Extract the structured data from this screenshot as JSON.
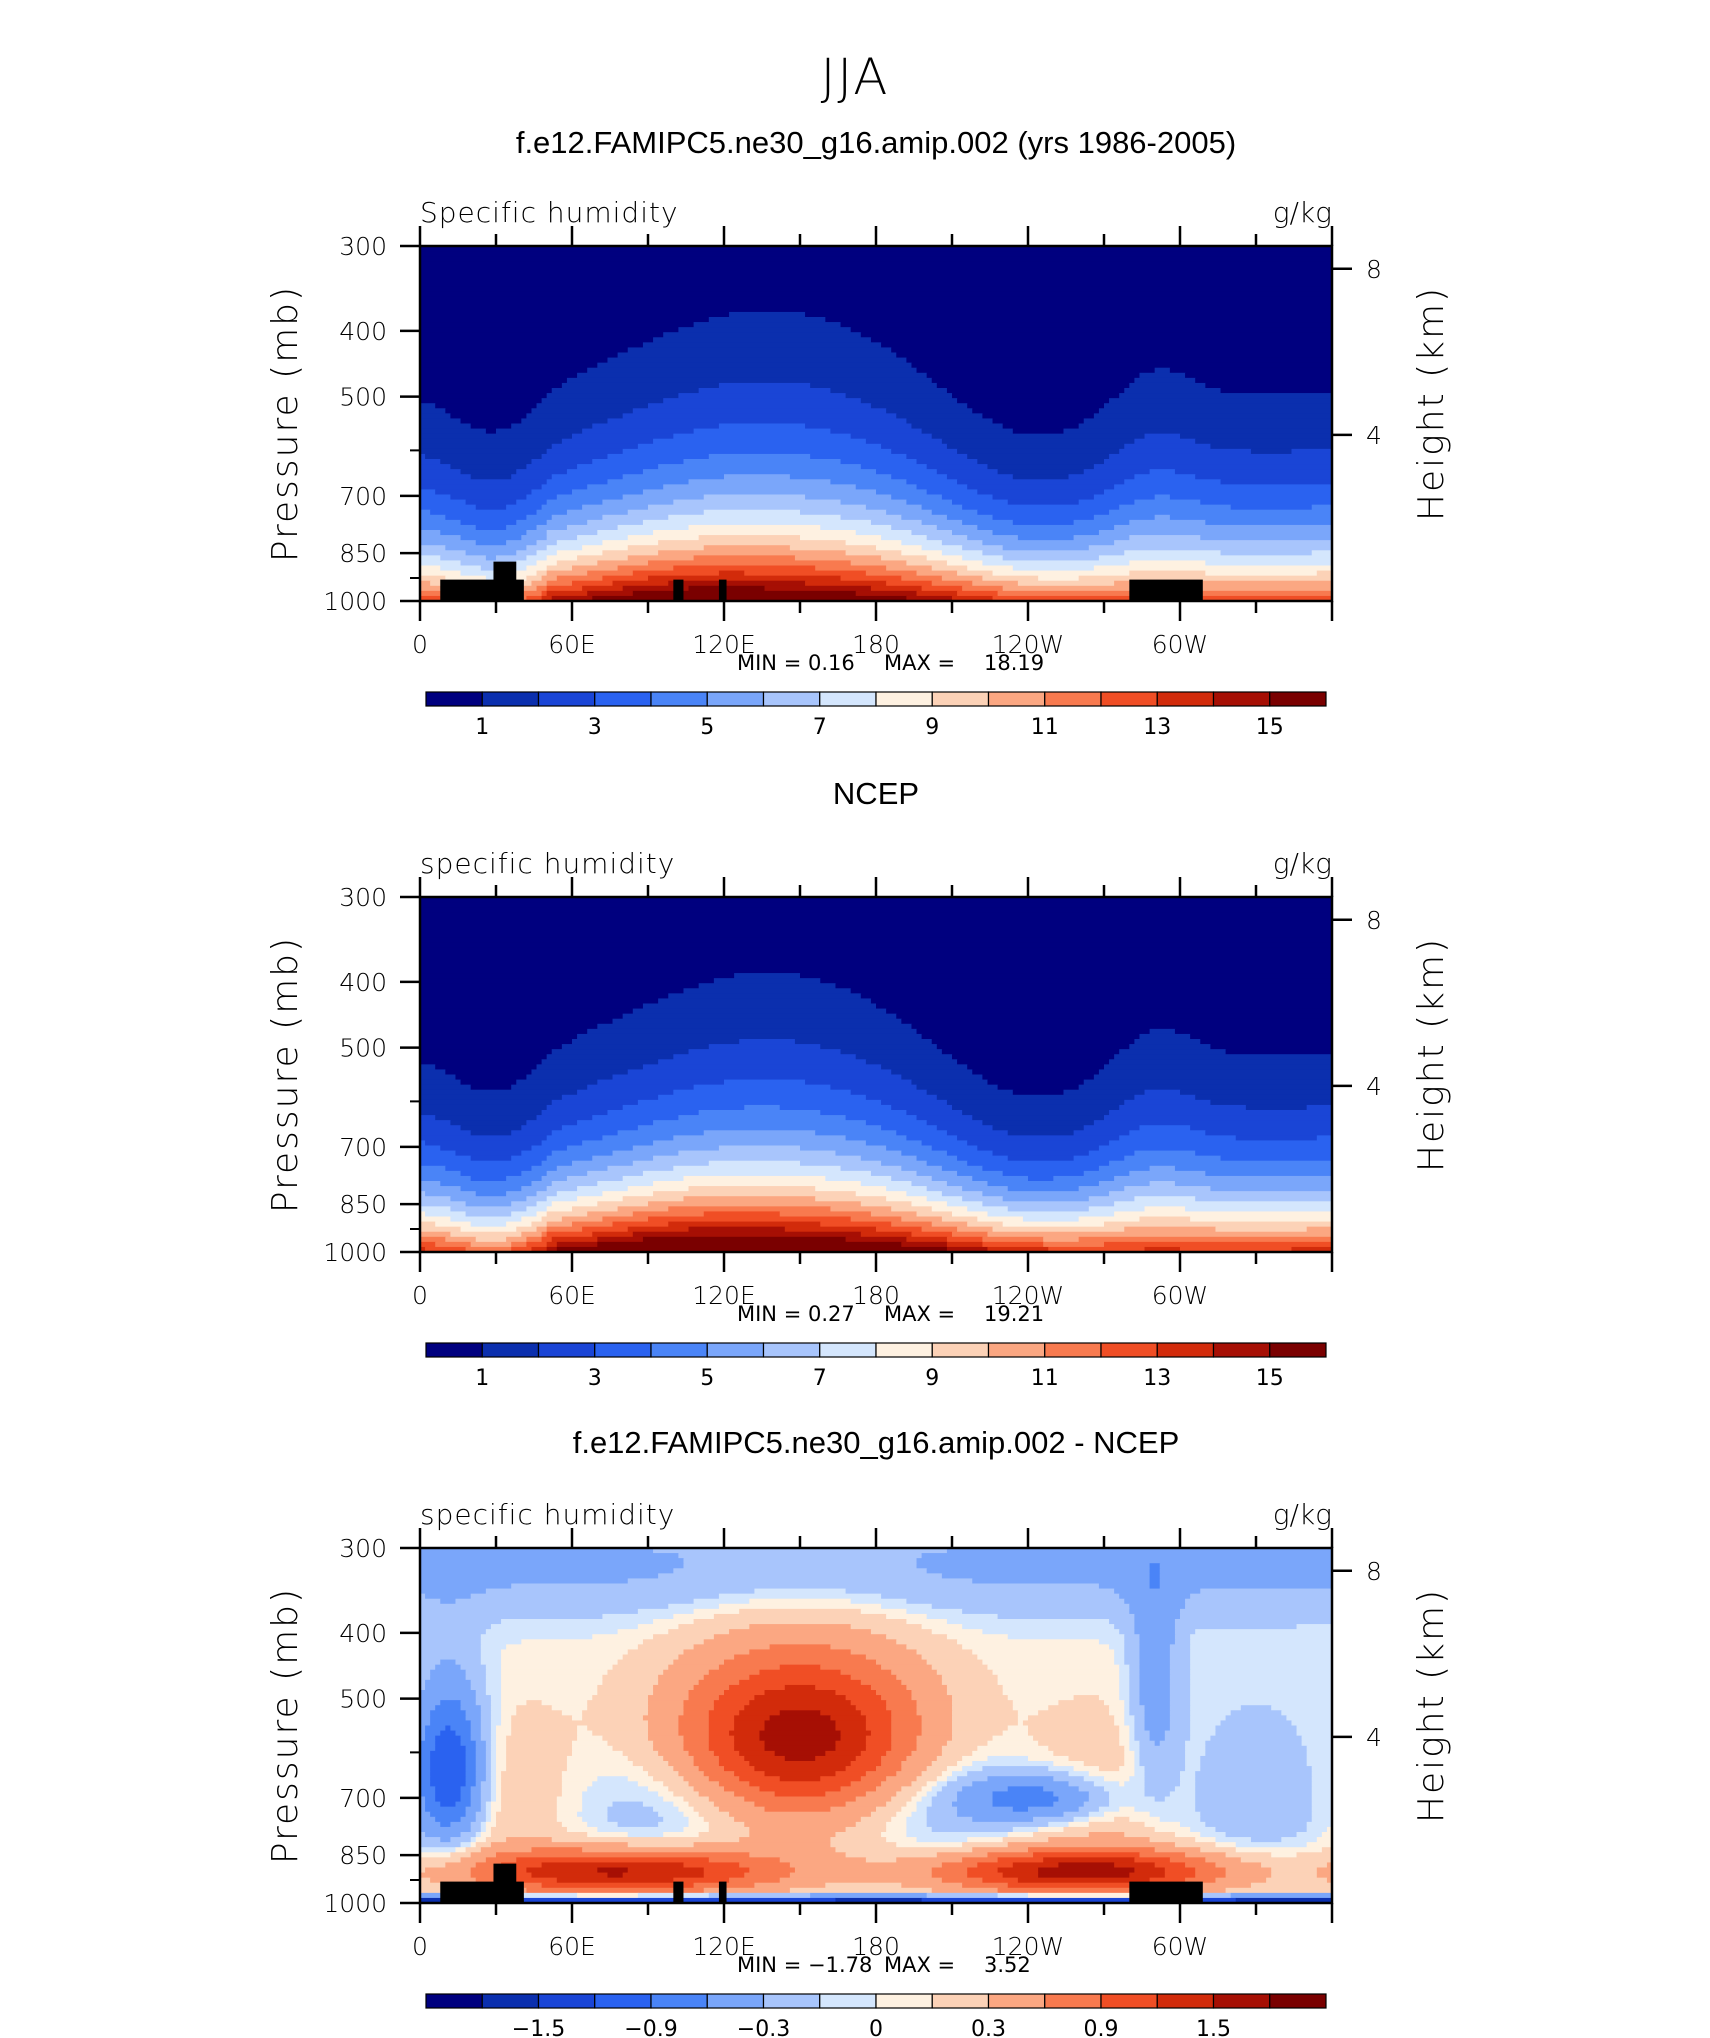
{
  "figure": {
    "title": "JJA"
  },
  "colorbar_colors_abs": [
    "#00007f",
    "#0b2fae",
    "#1a45d6",
    "#2a62f0",
    "#4a84f7",
    "#7aa6fa",
    "#a8c5fc",
    "#d4e6fd",
    "#fef1e1",
    "#fcd2b7",
    "#fba782",
    "#f87a4f",
    "#f04e25",
    "#d22b0b",
    "#a60f04",
    "#7a0000"
  ],
  "colorbar_colors_diff": [
    "#00007f",
    "#0b2fae",
    "#1a45d6",
    "#2a62f0",
    "#4a84f7",
    "#7aa6fa",
    "#a8c5fc",
    "#d4e6fd",
    "#fef1e1",
    "#fcd2b7",
    "#fba782",
    "#f87a4f",
    "#f04e25",
    "#d22b0b",
    "#a60f04",
    "#7a0000"
  ],
  "chart_data": [
    {
      "type": "heatmap",
      "title": "f.e12.FAMIPC5.ne30_g16.amip.002 (yrs 1986-2005)",
      "left_label": "Specific humidity",
      "right_label": "g/kg",
      "ylabel": "Pressure (mb)",
      "ylabel_right": "Height (km)",
      "x_ticks": [
        "0",
        "60E",
        "120E",
        "180",
        "120W",
        "60W"
      ],
      "y_ticks": [
        "300",
        "400",
        "500",
        "700",
        "850",
        "1000"
      ],
      "y_ticks_right": [
        "8",
        "4"
      ],
      "min_label": "MIN =",
      "min_value": "0.16",
      "max_label": "MAX =",
      "max_value": "18.19",
      "colorbar_labels": [
        "1",
        "3",
        "5",
        "7",
        "9",
        "11",
        "13",
        "15"
      ],
      "xlim": [
        0,
        360
      ],
      "ylim": [
        1000,
        300
      ],
      "masked": true,
      "field": "model"
    },
    {
      "type": "heatmap",
      "title": "NCEP",
      "left_label": "specific humidity",
      "right_label": "g/kg",
      "ylabel": "Pressure (mb)",
      "ylabel_right": "Height (km)",
      "x_ticks": [
        "0",
        "60E",
        "120E",
        "180",
        "120W",
        "60W"
      ],
      "y_ticks": [
        "300",
        "400",
        "500",
        "700",
        "850",
        "1000"
      ],
      "y_ticks_right": [
        "8",
        "4"
      ],
      "min_label": "MIN =",
      "min_value": "0.27",
      "max_label": "MAX =",
      "max_value": "19.21",
      "colorbar_labels": [
        "1",
        "3",
        "5",
        "7",
        "9",
        "11",
        "13",
        "15"
      ],
      "xlim": [
        0,
        360
      ],
      "ylim": [
        1000,
        300
      ],
      "masked": false,
      "field": "obs"
    },
    {
      "type": "heatmap",
      "title": "f.e12.FAMIPC5.ne30_g16.amip.002 - NCEP",
      "left_label": "specific humidity",
      "right_label": "g/kg",
      "ylabel": "Pressure (mb)",
      "ylabel_right": "Height (km)",
      "x_ticks": [
        "0",
        "60E",
        "120E",
        "180",
        "120W",
        "60W"
      ],
      "y_ticks": [
        "300",
        "400",
        "500",
        "700",
        "850",
        "1000"
      ],
      "y_ticks_right": [
        "8",
        "4"
      ],
      "min_label": "MIN =",
      "min_value": "−1.78",
      "max_label": "MAX =",
      "max_value": "3.52",
      "colorbar_labels": [
        "−1.5",
        "−0.9",
        "−0.3",
        "0",
        "0.3",
        "0.9",
        "1.5"
      ],
      "xlim": [
        0,
        360
      ],
      "ylim": [
        1000,
        300
      ],
      "masked": true,
      "field": "diff"
    }
  ]
}
